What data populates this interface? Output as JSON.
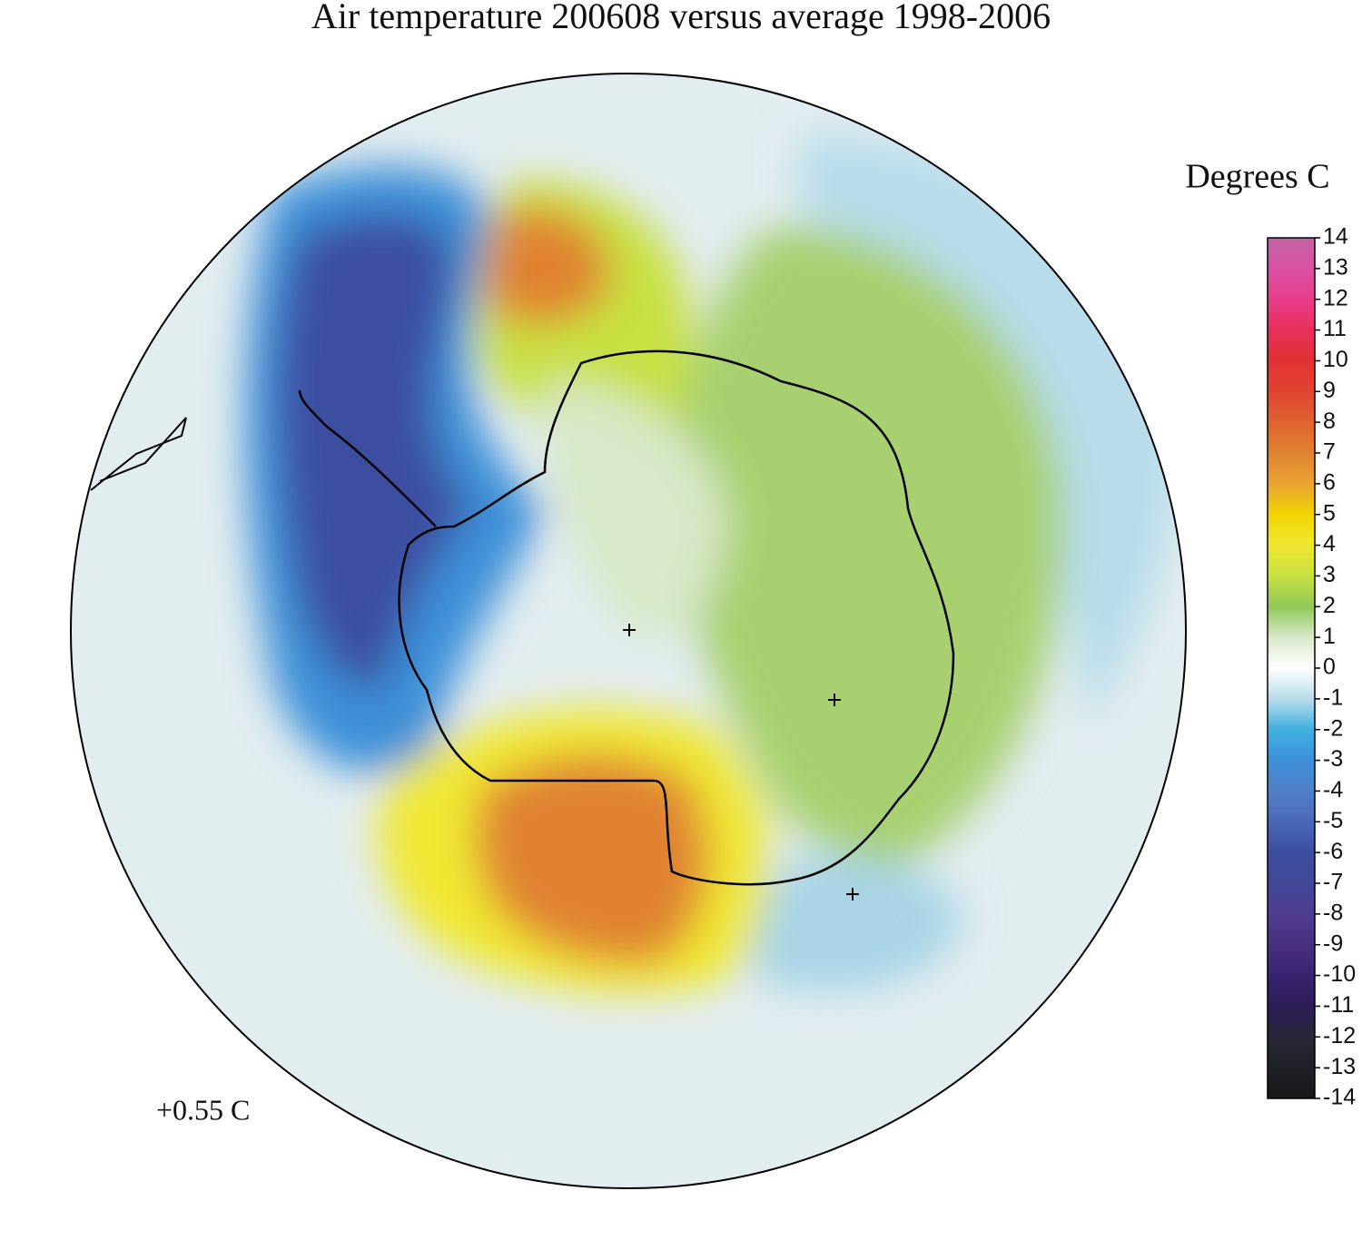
{
  "title": "Air temperature 200608 versus average 1998-2006",
  "annotation": "+0.55 C",
  "colorbar": {
    "label": "Degrees C",
    "lim": [
      -14,
      14
    ],
    "ticks": [
      14,
      13,
      12,
      11,
      10,
      9,
      8,
      7,
      6,
      5,
      4,
      3,
      2,
      1,
      0,
      -1,
      -2,
      -3,
      -4,
      -5,
      -6,
      -7,
      -8,
      -9,
      -10,
      -11,
      -12,
      -13,
      -14
    ],
    "colors": [
      "#c462a4",
      "#d852a2",
      "#e83c8c",
      "#e8305c",
      "#e03232",
      "#e04430",
      "#e06230",
      "#e08232",
      "#e8a432",
      "#f0d400",
      "#f0e830",
      "#c8e040",
      "#90c858",
      "#d8e8c8",
      "#ffffff",
      "#b8dcea",
      "#40b0e0",
      "#3c90d8",
      "#5080c8",
      "#4a68b8",
      "#3c4ea0",
      "#404898",
      "#503c90",
      "#483080",
      "#3a2470",
      "#2c1c58",
      "#282838",
      "#202028",
      "#181818"
    ]
  }
}
